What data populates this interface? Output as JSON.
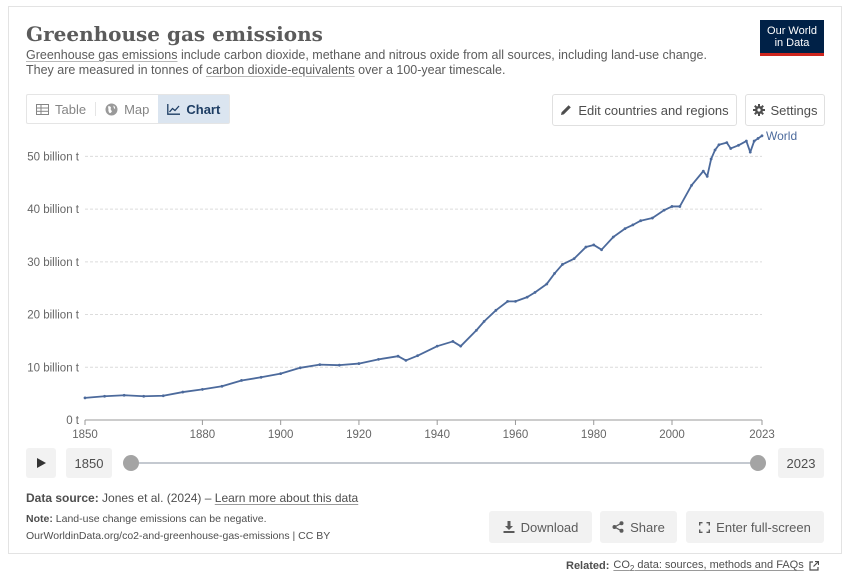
{
  "header": {
    "title": "Greenhouse gas emissions",
    "subtitle_parts": {
      "link1": "Greenhouse gas emissions",
      "text1": " include carbon dioxide, methane and nitrous oxide from all sources, including land-use change.",
      "text2": "They are measured in tonnes of ",
      "link2": "carbon dioxide-equivalents",
      "text3": " over a 100-year timescale."
    },
    "logo_line1": "Our World",
    "logo_line2": "in Data"
  },
  "tabs": [
    {
      "label": "Table",
      "icon": "table-icon",
      "active": false
    },
    {
      "label": "Map",
      "icon": "globe-icon",
      "active": false
    },
    {
      "label": "Chart",
      "icon": "line-chart-icon",
      "active": true
    }
  ],
  "toolbar": {
    "edit_label": "Edit countries and regions",
    "settings_label": "Settings"
  },
  "timeline": {
    "start_year": "1850",
    "end_year": "2023"
  },
  "footer": {
    "source_label": "Data source:",
    "source_text": " Jones et al. (2024) – ",
    "learn_more": "Learn more about this data",
    "note_label": "Note:",
    "note_text": " Land-use change emissions can be negative.",
    "url_text": "OurWorldinData.org/co2-and-greenhouse-gas-emissions | CC BY",
    "download_label": "Download",
    "share_label": "Share",
    "fullscreen_label": "Enter full-screen",
    "related_label": "Related:",
    "related_link_pre": "CO",
    "related_link_sub": "2",
    "related_link_post": " data: sources, methods and FAQs"
  },
  "colors": {
    "series": "#4c6a9c",
    "accent_tab": "#dbe5f0",
    "logo_bg": "#002147",
    "logo_bar": "#ce261e"
  },
  "chart_data": {
    "type": "line",
    "xlim": [
      1850,
      2023
    ],
    "ylim": [
      0,
      55
    ],
    "y_unit": "billion t",
    "y_ticks": [
      0,
      10,
      20,
      30,
      40,
      50
    ],
    "y_tick_labels": [
      "0 t",
      "10 billion t",
      "20 billion t",
      "30 billion t",
      "40 billion t",
      "50 billion t"
    ],
    "x_ticks": [
      1850,
      1880,
      1900,
      1920,
      1940,
      1960,
      1980,
      2000,
      2023
    ],
    "grid": "horizontal",
    "series": [
      {
        "name": "World",
        "x": [
          1850,
          1855,
          1860,
          1865,
          1870,
          1875,
          1880,
          1885,
          1890,
          1895,
          1900,
          1905,
          1910,
          1915,
          1920,
          1925,
          1930,
          1932,
          1935,
          1940,
          1944,
          1946,
          1950,
          1952,
          1955,
          1958,
          1960,
          1963,
          1965,
          1968,
          1970,
          1972,
          1975,
          1978,
          1980,
          1982,
          1985,
          1988,
          1990,
          1992,
          1995,
          1998,
          2000,
          2002,
          2005,
          2008,
          2009,
          2010,
          2011,
          2012,
          2014,
          2015,
          2017,
          2019,
          2020,
          2021,
          2022,
          2023
        ],
        "y": [
          4.2,
          4.5,
          4.7,
          4.5,
          4.6,
          5.3,
          5.8,
          6.4,
          7.5,
          8.1,
          8.8,
          9.9,
          10.5,
          10.4,
          10.7,
          11.5,
          12.1,
          11.3,
          12.2,
          14.0,
          14.9,
          14.0,
          17.0,
          18.7,
          20.8,
          22.5,
          22.5,
          23.3,
          24.2,
          25.8,
          27.8,
          29.5,
          30.6,
          32.8,
          33.2,
          32.3,
          34.7,
          36.3,
          37.0,
          37.8,
          38.3,
          39.8,
          40.5,
          40.5,
          44.5,
          47.2,
          46.2,
          49.5,
          51.2,
          52.2,
          52.6,
          51.5,
          52.1,
          52.9,
          50.8,
          52.9,
          53.4,
          53.9
        ]
      }
    ]
  }
}
